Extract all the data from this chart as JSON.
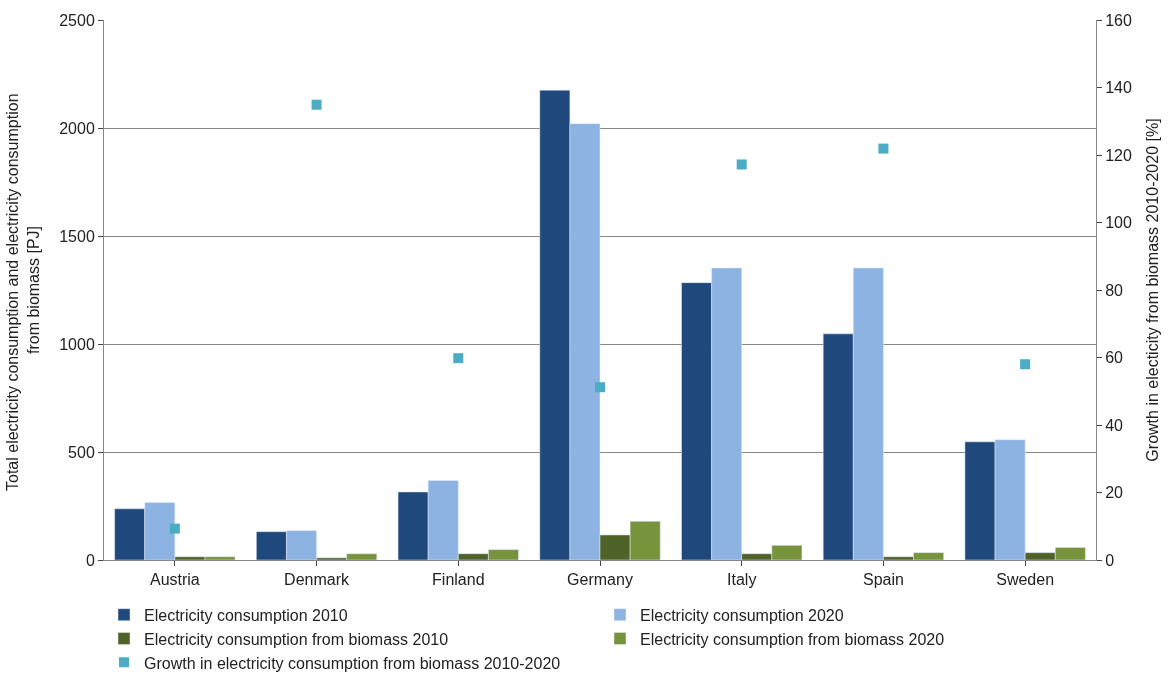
{
  "chart_data": {
    "type": "bar",
    "categories": [
      "Austria",
      "Denmark",
      "Finland",
      "Germany",
      "Italy",
      "Spain",
      "Sweden"
    ],
    "ylabel": "Total electricity consumption and electricity consumption from biomass [PJ]",
    "y2label": "Growth in electicity from biomass 2010-2020 [%]",
    "ylim": [
      0,
      2500
    ],
    "yticks": [
      0,
      500,
      1000,
      1500,
      2000,
      2500
    ],
    "y2lim": [
      0,
      160
    ],
    "y2ticks": [
      0,
      20,
      40,
      60,
      80,
      100,
      120,
      140,
      160
    ],
    "grid": "y",
    "legend": "bottom",
    "series": [
      {
        "name": "Electricity consumption 2010",
        "color": "#1f497d",
        "values": [
          237,
          131,
          315,
          2175,
          1284,
          1047,
          547
        ]
      },
      {
        "name": "Electricity consumption 2020",
        "color": "#8db3e2",
        "values": [
          266,
          136,
          368,
          2020,
          1352,
          1352,
          557
        ]
      },
      {
        "name": "Electricity consumption from biomass 2010",
        "color": "#4f6228",
        "values": [
          15,
          10,
          29,
          116,
          29,
          15,
          34
        ]
      },
      {
        "name": "Electricity consumption from biomass 2020",
        "color": "#77933c",
        "values": [
          15,
          29,
          48,
          179,
          68,
          34,
          58
        ]
      },
      {
        "name": "Growth in electricity consumption from biomass 2010-2020",
        "color": "#4bacc6",
        "type": "scatter",
        "axis": "y2",
        "marker": "square",
        "values": [
          9.3,
          134.9,
          59.8,
          51.2,
          117.2,
          121.9,
          58
        ]
      }
    ]
  }
}
